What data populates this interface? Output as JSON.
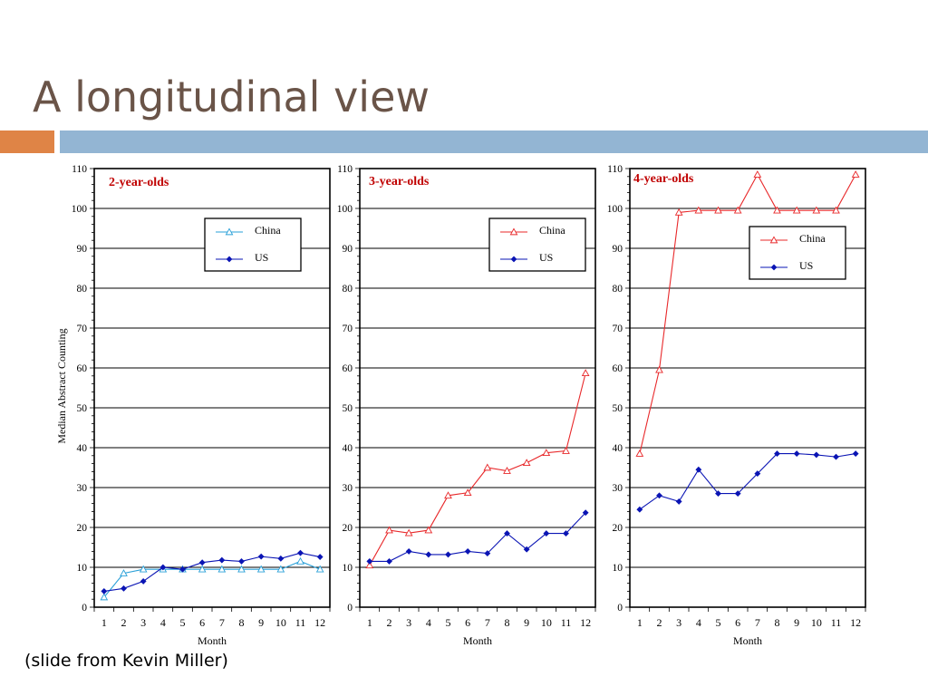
{
  "slide": {
    "title": "A longitudinal view",
    "caption": "(slide from Kevin Miller)"
  },
  "colors": {
    "title": "#6a5448",
    "accent_orange": "#df8446",
    "accent_blue": "#93b5d3",
    "panel_title": "#c00000",
    "china_2yr": "#2aa0d8",
    "china": "#e8282a",
    "us": "#0a14b4"
  },
  "chart_data": [
    {
      "type": "line",
      "title": "2-year-olds",
      "xlabel": "Month",
      "ylabel": "Median Abstract Counting",
      "ylim": [
        0,
        110
      ],
      "yticks": [
        0,
        10,
        20,
        30,
        40,
        50,
        60,
        70,
        80,
        90,
        100,
        110
      ],
      "categories": [
        "1",
        "2",
        "3",
        "4",
        "5",
        "6",
        "7",
        "8",
        "9",
        "10",
        "11",
        "12"
      ],
      "grid": true,
      "legend": "top-right",
      "series": [
        {
          "name": "China",
          "marker": "triangle",
          "color": "#2aa0d8",
          "values": [
            2.5,
            8.5,
            9.5,
            9.5,
            9.5,
            9.5,
            9.5,
            9.5,
            9.5,
            9.5,
            11.5,
            9.5
          ]
        },
        {
          "name": "US",
          "marker": "diamond",
          "color": "#0a14b4",
          "values": [
            4,
            4.7,
            6.5,
            10,
            9.5,
            11.2,
            11.8,
            11.5,
            12.7,
            12.2,
            13.6,
            12.6
          ]
        }
      ]
    },
    {
      "type": "line",
      "title": "3-year-olds",
      "xlabel": "Month",
      "ylabel": "",
      "ylim": [
        0,
        110
      ],
      "yticks": [
        0,
        10,
        20,
        30,
        40,
        50,
        60,
        70,
        80,
        90,
        100,
        110
      ],
      "categories": [
        "1",
        "2",
        "3",
        "4",
        "5",
        "6",
        "7",
        "8",
        "9",
        "10",
        "11",
        "12"
      ],
      "grid": true,
      "legend": "top-right",
      "series": [
        {
          "name": "China",
          "marker": "triangle",
          "color": "#e8282a",
          "values": [
            10.5,
            19.3,
            18.6,
            19.3,
            28,
            28.7,
            35,
            34.2,
            36.2,
            38.7,
            39.2,
            58.7
          ]
        },
        {
          "name": "US",
          "marker": "diamond",
          "color": "#0a14b4",
          "values": [
            11.5,
            11.5,
            14,
            13.2,
            13.2,
            14,
            13.5,
            18.5,
            14.5,
            18.5,
            18.5,
            23.7
          ]
        }
      ]
    },
    {
      "type": "line",
      "title": "4-year-olds",
      "xlabel": "Month",
      "ylabel": "",
      "ylim": [
        0,
        110
      ],
      "yticks": [
        0,
        10,
        20,
        30,
        40,
        50,
        60,
        70,
        80,
        90,
        100,
        110
      ],
      "categories": [
        "1",
        "2",
        "3",
        "4",
        "5",
        "6",
        "7",
        "8",
        "9",
        "10",
        "11",
        "12"
      ],
      "grid": true,
      "legend": "top-right",
      "series": [
        {
          "name": "China",
          "marker": "triangle",
          "color": "#e8282a",
          "values": [
            38.5,
            59.5,
            99,
            99.5,
            99.5,
            99.5,
            108.5,
            99.5,
            99.5,
            99.5,
            99.5,
            108.5
          ]
        },
        {
          "name": "US",
          "marker": "diamond",
          "color": "#0a14b4",
          "values": [
            24.5,
            28,
            26.5,
            34.5,
            28.5,
            28.5,
            33.5,
            38.5,
            38.5,
            38.2,
            37.7,
            38.5
          ]
        }
      ]
    }
  ]
}
